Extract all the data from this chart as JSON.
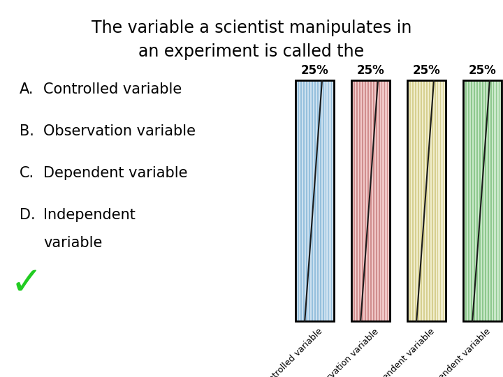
{
  "title_line1": "The variable a scientist manipulates in",
  "title_line2": "an experiment is called the",
  "options_lines": [
    [
      "A.",
      "Controlled variable"
    ],
    [
      "B.",
      "Observation variable"
    ],
    [
      "C.",
      "Dependent variable"
    ],
    [
      "D.",
      "Independent"
    ],
    [
      "",
      "variable"
    ]
  ],
  "bars": [
    {
      "label": "Controlled variable",
      "color_fill": "#cce0ef",
      "color_stripe": "#7ab0d4",
      "pct": "25%"
    },
    {
      "label": "Observation variable",
      "color_fill": "#f0c8c8",
      "color_stripe": "#c07070",
      "pct": "25%"
    },
    {
      "label": "Dependent variable",
      "color_fill": "#f0edcc",
      "color_stripe": "#c8c070",
      "pct": "25%"
    },
    {
      "label": "Independent variable",
      "color_fill": "#c8e8c8",
      "color_stripe": "#70b870",
      "pct": "25%"
    }
  ],
  "checkmark_color": "#22cc22",
  "background_color": "#ffffff",
  "text_color": "#000000",
  "num_stripes": 14
}
